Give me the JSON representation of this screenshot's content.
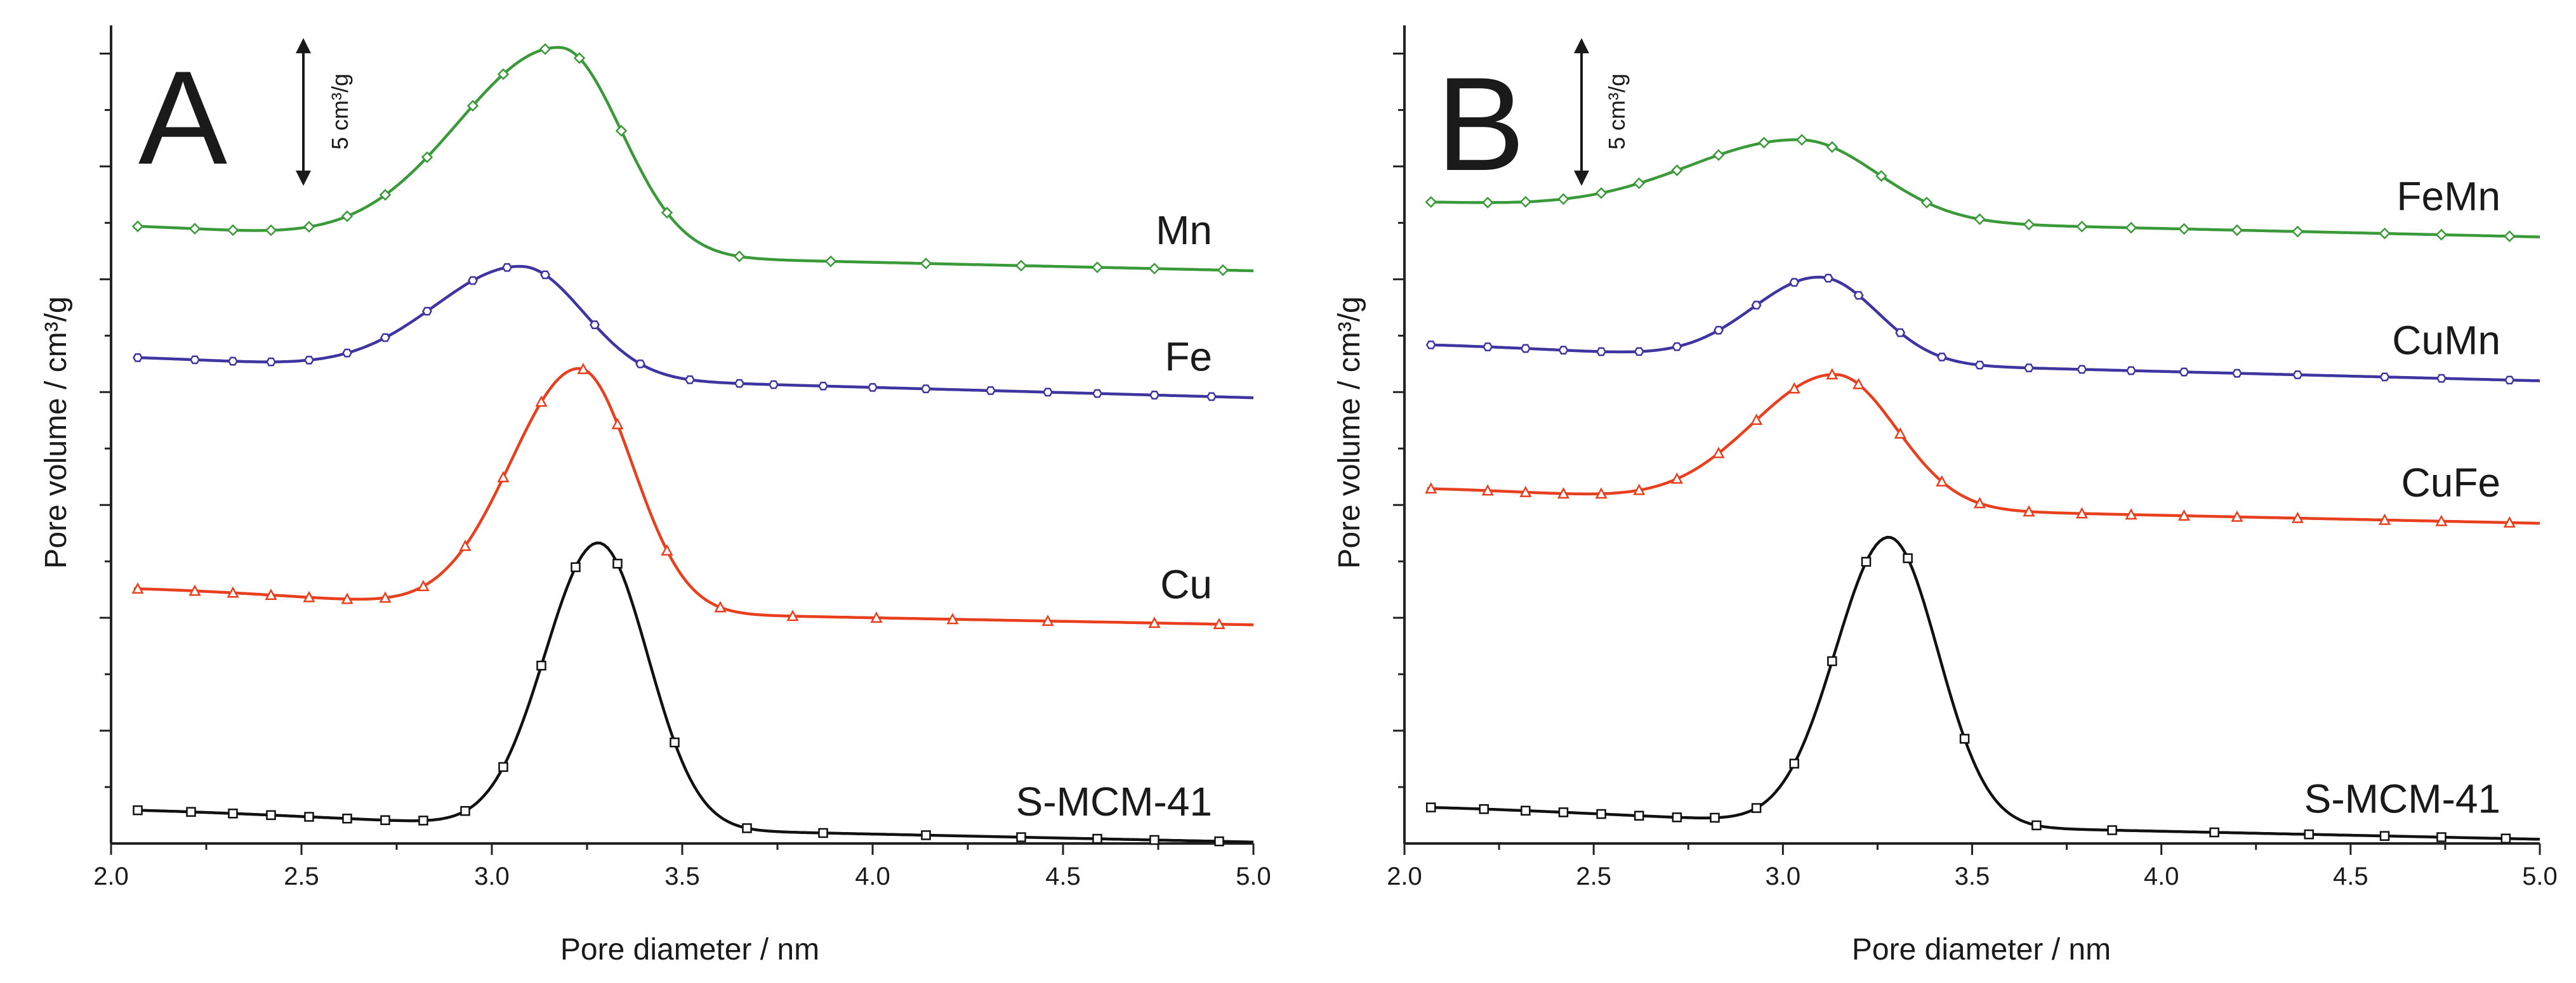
{
  "chart_data": [
    {
      "panel_label": "A",
      "type": "line",
      "xlabel": "Pore diameter / nm",
      "ylabel": "Pore volume / cm³/g",
      "xlim": [
        2.0,
        5.0
      ],
      "ylim": [
        0,
        29
      ],
      "x_ticks": [
        "2.0",
        "2.5",
        "3.0",
        "3.5",
        "4.0",
        "4.5",
        "5.0"
      ],
      "scale_bar": {
        "value": 5,
        "label": "5 cm³/g"
      },
      "series": [
        {
          "name": "Mn",
          "color": "#3a9a3a",
          "marker": "diamond",
          "baseline": 21.2,
          "peak_x": 3.18,
          "peak_height": 7.3,
          "sigma_left": 0.27,
          "sigma_right": 0.16,
          "shoulder": 0.7,
          "tail": -0.9,
          "marker_x": [
            2.07,
            2.22,
            2.32,
            2.42,
            2.52,
            2.62,
            2.72,
            2.83,
            2.95,
            3.03,
            3.14,
            3.23,
            3.34,
            3.46,
            3.65,
            3.89,
            4.14,
            4.39,
            4.59,
            4.74,
            4.92
          ]
        },
        {
          "name": "Fe",
          "color": "#3e35a0",
          "marker": "hexagon",
          "baseline": 16.9,
          "peak_x": 3.08,
          "peak_height": 3.9,
          "sigma_left": 0.23,
          "sigma_right": 0.16,
          "shoulder": 0.35,
          "tail": -1.1,
          "marker_x": [
            2.07,
            2.22,
            2.32,
            2.42,
            2.52,
            2.62,
            2.72,
            2.83,
            2.95,
            3.04,
            3.14,
            3.27,
            3.39,
            3.52,
            3.65,
            3.74,
            3.87,
            4.0,
            4.14,
            4.31,
            4.46,
            4.59,
            4.74,
            4.89
          ]
        },
        {
          "name": "Cu",
          "color": "#e8401f",
          "marker": "triangle",
          "baseline": 8.5,
          "peak_x": 3.23,
          "peak_height": 8.6,
          "sigma_left": 0.18,
          "sigma_right": 0.14,
          "shoulder": 0.55,
          "tail": -0.75,
          "marker_x": [
            2.07,
            2.22,
            2.32,
            2.42,
            2.52,
            2.62,
            2.72,
            2.82,
            2.93,
            3.03,
            3.13,
            3.24,
            3.33,
            3.46,
            3.6,
            3.79,
            4.01,
            4.21,
            4.46,
            4.74,
            4.91
          ]
        },
        {
          "name": "S-MCM-41",
          "color": "#111111",
          "marker": "square",
          "baseline": 0.9,
          "peak_x": 3.28,
          "peak_height": 10.1,
          "sigma_left": 0.14,
          "sigma_right": 0.13,
          "shoulder": 0.3,
          "tail": -0.85,
          "marker_x": [
            2.07,
            2.21,
            2.32,
            2.42,
            2.52,
            2.62,
            2.72,
            2.82,
            2.93,
            3.03,
            3.13,
            3.22,
            3.33,
            3.48,
            3.67,
            3.87,
            4.14,
            4.39,
            4.59,
            4.74,
            4.91
          ]
        }
      ]
    },
    {
      "panel_label": "B",
      "type": "line",
      "xlabel": "Pore diameter / nm",
      "ylabel": "Pore volume / cm³/g",
      "xlim": [
        2.0,
        5.0
      ],
      "ylim": [
        0,
        29
      ],
      "x_ticks": [
        "2.0",
        "2.5",
        "3.0",
        "3.5",
        "4.0",
        "4.5",
        "5.0"
      ],
      "scale_bar": {
        "value": 5,
        "label": "5 cm³/g"
      },
      "series": [
        {
          "name": "FeMn",
          "color": "#3a9a3a",
          "marker": "diamond",
          "baseline": 22.4,
          "peak_x": 3.05,
          "peak_height": 2.8,
          "sigma_left": 0.3,
          "sigma_right": 0.2,
          "shoulder": 0.35,
          "tail": -0.9,
          "marker_x": [
            2.07,
            2.22,
            2.32,
            2.42,
            2.52,
            2.62,
            2.72,
            2.83,
            2.95,
            3.05,
            3.13,
            3.26,
            3.38,
            3.52,
            3.65,
            3.79,
            3.92,
            4.06,
            4.2,
            4.36,
            4.59,
            4.74,
            4.92
          ]
        },
        {
          "name": "CuMn",
          "color": "#3e35a0",
          "marker": "hexagon",
          "baseline": 17.4,
          "peak_x": 3.1,
          "peak_height": 3.0,
          "sigma_left": 0.18,
          "sigma_right": 0.15,
          "shoulder": 0.3,
          "tail": -1.0,
          "marker_x": [
            2.07,
            2.22,
            2.32,
            2.42,
            2.52,
            2.62,
            2.72,
            2.83,
            2.93,
            3.03,
            3.12,
            3.2,
            3.31,
            3.42,
            3.52,
            3.65,
            3.79,
            3.92,
            4.06,
            4.2,
            4.36,
            4.59,
            4.74,
            4.92
          ]
        },
        {
          "name": "CuFe",
          "color": "#e8401f",
          "marker": "triangle",
          "baseline": 12.2,
          "peak_x": 3.14,
          "peak_height": 4.7,
          "sigma_left": 0.22,
          "sigma_right": 0.16,
          "shoulder": 0.4,
          "tail": -0.85,
          "marker_x": [
            2.07,
            2.22,
            2.32,
            2.42,
            2.52,
            2.62,
            2.72,
            2.83,
            2.93,
            3.03,
            3.13,
            3.2,
            3.31,
            3.42,
            3.52,
            3.65,
            3.79,
            3.92,
            4.06,
            4.2,
            4.36,
            4.59,
            4.74,
            4.92
          ]
        },
        {
          "name": "S-MCM-41",
          "color": "#111111",
          "marker": "square",
          "baseline": 1.0,
          "peak_x": 3.28,
          "peak_height": 10.2,
          "sigma_left": 0.14,
          "sigma_right": 0.13,
          "shoulder": 0.3,
          "tail": -0.85,
          "marker_x": [
            2.07,
            2.21,
            2.32,
            2.42,
            2.52,
            2.62,
            2.72,
            2.82,
            2.93,
            3.03,
            3.13,
            3.22,
            3.33,
            3.48,
            3.67,
            3.87,
            4.14,
            4.39,
            4.59,
            4.74,
            4.91
          ]
        }
      ]
    }
  ]
}
